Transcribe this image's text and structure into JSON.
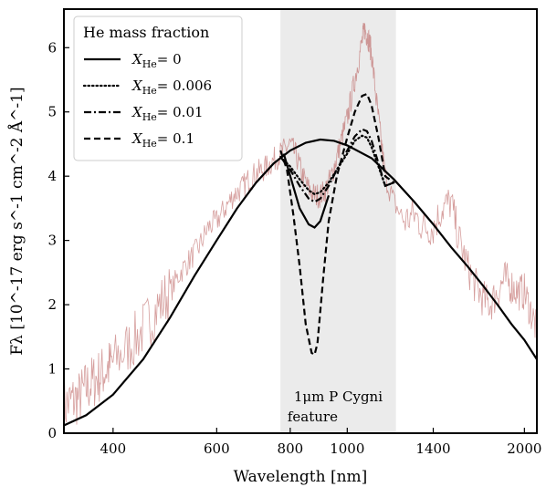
{
  "chart_data": {
    "type": "line",
    "title": "",
    "xlabel": "Wavelength [nm]",
    "ylabel_html": "F<tspan font-style='italic'>λ</tspan>",
    "ylabel": "Fλ [10^-17 erg s^-1 cm^-2 Å^-1]",
    "x_scale": "log",
    "xlim": [
      330,
      2100
    ],
    "ylim": [
      0,
      6.6
    ],
    "x_ticks": [
      400,
      600,
      800,
      1000,
      1400,
      2000
    ],
    "x_tick_labels": [
      "400",
      "600",
      "800",
      "1000",
      "1400",
      "2000"
    ],
    "y_ticks": [
      0,
      1,
      2,
      3,
      4,
      5,
      6
    ],
    "y_tick_labels": [
      "0",
      "1",
      "2",
      "3",
      "4",
      "5",
      "6"
    ],
    "shaded_region": {
      "x": [
        770,
        1210
      ],
      "color": "#ebebeb"
    },
    "annotation": {
      "line1": "1μm P Cygni",
      "line2": "feature"
    },
    "legend": {
      "title": "He mass fraction",
      "placement": "top-left",
      "entries": [
        {
          "label_var": "X",
          "label_sub": "He",
          "label_val": "= 0",
          "style": "solid"
        },
        {
          "label_var": "X",
          "label_sub": "He",
          "label_val": "= 0.006",
          "style": "dotted"
        },
        {
          "label_var": "X",
          "label_sub": "He",
          "label_val": "= 0.01",
          "style": "dashdot"
        },
        {
          "label_var": "X",
          "label_sub": "He",
          "label_val": "= 0.1",
          "style": "dashed"
        }
      ]
    },
    "observed_color": "#b5504f",
    "series": [
      {
        "name": "XHe = 0",
        "style": "solid",
        "color": "#000000",
        "x": [
          330,
          360,
          400,
          450,
          500,
          550,
          600,
          650,
          700,
          750,
          800,
          850,
          900,
          950,
          1000,
          1100,
          1200,
          1300,
          1400,
          1500,
          1600,
          1700,
          1800,
          1900,
          2000,
          2100
        ],
        "y": [
          0.12,
          0.28,
          0.6,
          1.15,
          1.8,
          2.45,
          3.0,
          3.5,
          3.9,
          4.2,
          4.4,
          4.52,
          4.57,
          4.55,
          4.48,
          4.28,
          3.95,
          3.6,
          3.25,
          2.9,
          2.6,
          2.3,
          2.0,
          1.7,
          1.45,
          1.15
        ]
      },
      {
        "name": "XHe = 0.006",
        "style": "dotted",
        "color": "#000000",
        "x": [
          770,
          800,
          830,
          860,
          880,
          900,
          930,
          960,
          1000,
          1030,
          1060,
          1080,
          1100,
          1130,
          1160,
          1200
        ],
        "y": [
          4.3,
          4.15,
          3.95,
          3.78,
          3.72,
          3.75,
          3.9,
          4.1,
          4.35,
          4.55,
          4.63,
          4.6,
          4.45,
          4.15,
          3.85,
          3.9
        ]
      },
      {
        "name": "XHe = 0.01",
        "style": "dashdot",
        "color": "#000000",
        "x": [
          770,
          800,
          830,
          860,
          880,
          900,
          930,
          960,
          1000,
          1030,
          1060,
          1080,
          1100,
          1130,
          1160,
          1200
        ],
        "y": [
          4.3,
          4.1,
          3.85,
          3.65,
          3.6,
          3.65,
          3.85,
          4.1,
          4.4,
          4.62,
          4.73,
          4.7,
          4.55,
          4.2,
          3.85,
          3.9
        ]
      },
      {
        "name": "XHe = 0.1",
        "style": "dashed",
        "color": "#000000",
        "x": [
          770,
          790,
          810,
          830,
          850,
          870,
          880,
          890,
          910,
          930,
          960,
          1000,
          1030,
          1060,
          1080,
          1100,
          1130,
          1160,
          1200
        ],
        "y": [
          4.4,
          4.1,
          3.4,
          2.6,
          1.7,
          1.25,
          1.22,
          1.4,
          2.4,
          3.3,
          4.0,
          4.6,
          5.0,
          5.25,
          5.28,
          5.1,
          4.6,
          4.0,
          3.9
        ]
      },
      {
        "name": "XHe = 0.01 (inner)",
        "style": "solid",
        "color": "#000000",
        "x": [
          780,
          800,
          830,
          860,
          880,
          900,
          930
        ],
        "y": [
          4.35,
          4.0,
          3.5,
          3.25,
          3.2,
          3.3,
          3.7
        ]
      }
    ],
    "observed": {
      "name": "observed spectrum",
      "x": [
        330,
        340,
        350,
        360,
        370,
        380,
        390,
        400,
        420,
        440,
        460,
        480,
        500,
        520,
        540,
        560,
        580,
        600,
        620,
        640,
        660,
        680,
        700,
        720,
        740,
        760,
        780,
        800,
        820,
        840,
        860,
        880,
        900,
        920,
        940,
        960,
        980,
        1000,
        1020,
        1040,
        1060,
        1070,
        1080,
        1090,
        1100,
        1120,
        1140,
        1160,
        1200,
        1250,
        1300,
        1350,
        1400,
        1450,
        1500,
        1550,
        1600,
        1650,
        1700,
        1750,
        1800,
        1850,
        1900,
        1950,
        2000,
        2050,
        2100
      ],
      "y": [
        0.4,
        0.5,
        0.55,
        0.7,
        0.8,
        0.9,
        1.0,
        1.1,
        1.3,
        1.5,
        1.75,
        2.0,
        2.2,
        2.5,
        2.7,
        2.9,
        3.2,
        3.3,
        3.5,
        3.7,
        3.8,
        3.95,
        4.05,
        4.1,
        4.2,
        4.3,
        4.4,
        4.5,
        4.3,
        4.0,
        3.8,
        3.7,
        3.7,
        3.8,
        4.0,
        4.3,
        4.6,
        4.9,
        5.3,
        5.7,
        6.1,
        6.3,
        6.2,
        6.1,
        5.9,
        5.2,
        4.6,
        4.0,
        3.6,
        3.3,
        3.4,
        3.2,
        3.2,
        3.5,
        3.6,
        3.0,
        2.6,
        2.3,
        2.1,
        2.0,
        2.2,
        2.4,
        2.3,
        2.2,
        2.2,
        1.9,
        1.6
      ]
    }
  }
}
